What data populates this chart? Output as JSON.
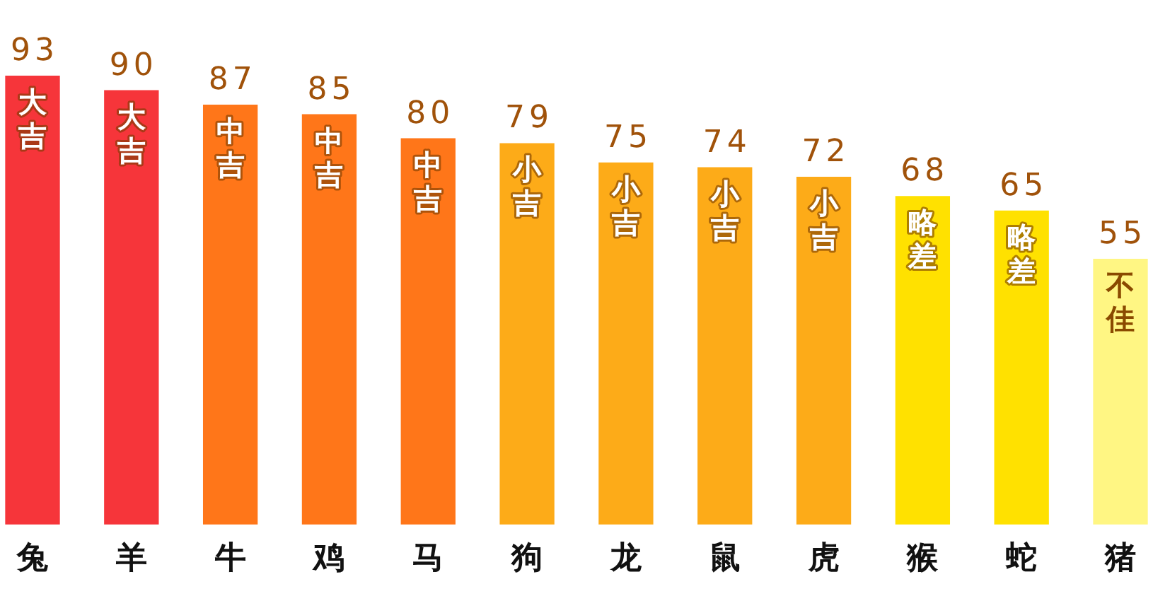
{
  "chart_data": {
    "type": "bar",
    "data_labels": true,
    "tick_labels": "x",
    "categories": [
      "兔",
      "羊",
      "牛",
      "鸡",
      "马",
      "狗",
      "龙",
      "鼠",
      "虎",
      "猴",
      "蛇",
      "猪"
    ],
    "values": [
      93,
      90,
      87,
      85,
      80,
      79,
      75,
      74,
      72,
      68,
      65,
      55
    ],
    "colors": [
      "#f6353a",
      "#f6353a",
      "#ff7619",
      "#ff7619",
      "#ff7619",
      "#fdab18",
      "#fdab18",
      "#fdab18",
      "#fdab18",
      "#ffe100",
      "#ffe100",
      "#fff683"
    ],
    "annotations": [
      {
        "text": "大吉",
        "x": "兔",
        "y": 93
      },
      {
        "text": "大吉",
        "x": "羊",
        "y": 90
      },
      {
        "text": "中吉",
        "x": "牛",
        "y": 87
      },
      {
        "text": "中吉",
        "x": "鸡",
        "y": 85
      },
      {
        "text": "中吉",
        "x": "马",
        "y": 80
      },
      {
        "text": "小吉",
        "x": "狗",
        "y": 79
      },
      {
        "text": "小吉",
        "x": "龙",
        "y": 75
      },
      {
        "text": "小吉",
        "x": "鼠",
        "y": 74
      },
      {
        "text": "小吉",
        "x": "虎",
        "y": 72
      },
      {
        "text": "略差",
        "x": "猴",
        "y": 68
      },
      {
        "text": "略差",
        "x": "蛇",
        "y": 65
      },
      {
        "text": "不佳",
        "x": "猪",
        "y": 55
      }
    ]
  }
}
